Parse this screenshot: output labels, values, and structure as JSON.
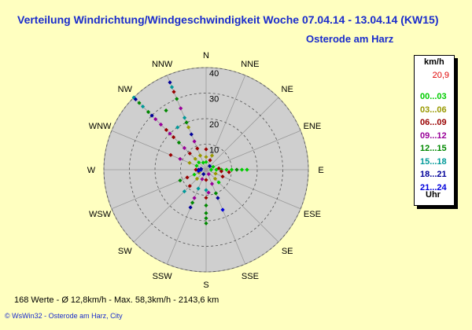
{
  "title": "Verteilung Windrichtung/Windgeschwindigkeit  Woche 07.04.14 - 13.04.14 (KW15)",
  "subtitle": "Osterode am Harz",
  "legend": {
    "unit": "km/h",
    "max": "20,9",
    "bands": [
      {
        "label": "00...03",
        "color": "#00cc00"
      },
      {
        "label": "03...06",
        "color": "#999900"
      },
      {
        "label": "06...09",
        "color": "#990000"
      },
      {
        "label": "09...12",
        "color": "#990099"
      },
      {
        "label": "12...15",
        "color": "#008800"
      },
      {
        "label": "15...18",
        "color": "#009999"
      },
      {
        "label": "18...21",
        "color": "#000099"
      },
      {
        "label": "21...24",
        "color": "#0000dd"
      }
    ],
    "footer": "Uhr"
  },
  "stats": "168 Werte   -   Ø 12,8km/h   -  Max. 58,3km/h   -   2143,6 km",
  "credit": "© WsWin32   -   Osterode am Harz, City",
  "chart_data": {
    "type": "scatter",
    "projection": "polar",
    "radial_max": 40,
    "radial_ticks": [
      10,
      20,
      30,
      40
    ],
    "direction_labels": [
      "N",
      "NNE",
      "NE",
      "ENE",
      "E",
      "ESE",
      "SE",
      "SSE",
      "S",
      "SSW",
      "SW",
      "WSW",
      "W",
      "WNW",
      "NW",
      "NNW"
    ],
    "points": [
      {
        "dir": 315,
        "r": 40,
        "c": 5
      },
      {
        "dir": 315,
        "r": 39,
        "c": 6
      },
      {
        "dir": 315,
        "r": 37,
        "c": 4
      },
      {
        "dir": 315,
        "r": 35,
        "c": 5
      },
      {
        "dir": 315,
        "r": 32,
        "c": 4
      },
      {
        "dir": 315,
        "r": 30,
        "c": 6
      },
      {
        "dir": 315,
        "r": 28,
        "c": 3
      },
      {
        "dir": 315,
        "r": 25,
        "c": 3
      },
      {
        "dir": 315,
        "r": 22,
        "c": 2
      },
      {
        "dir": 315,
        "r": 20,
        "c": 3
      },
      {
        "dir": 315,
        "r": 18,
        "c": 2
      },
      {
        "dir": 315,
        "r": 15,
        "c": 4
      },
      {
        "dir": 315,
        "r": 12,
        "c": 3
      },
      {
        "dir": 315,
        "r": 9,
        "c": 2
      },
      {
        "dir": 315,
        "r": 6,
        "c": 1
      },
      {
        "dir": 315,
        "r": 4,
        "c": 0
      },
      {
        "dir": 337.5,
        "r": 37,
        "c": 6
      },
      {
        "dir": 337.5,
        "r": 35,
        "c": 5
      },
      {
        "dir": 337.5,
        "r": 33,
        "c": 2
      },
      {
        "dir": 337.5,
        "r": 30,
        "c": 4
      },
      {
        "dir": 337.5,
        "r": 26,
        "c": 3
      },
      {
        "dir": 337.5,
        "r": 22,
        "c": 5
      },
      {
        "dir": 337.5,
        "r": 20,
        "c": 4
      },
      {
        "dir": 337.5,
        "r": 18,
        "c": 1
      },
      {
        "dir": 337.5,
        "r": 15,
        "c": 6
      },
      {
        "dir": 337.5,
        "r": 12,
        "c": 3
      },
      {
        "dir": 337.5,
        "r": 9,
        "c": 2
      },
      {
        "dir": 337.5,
        "r": 6,
        "c": 1
      },
      {
        "dir": 337.5,
        "r": 3,
        "c": 0
      },
      {
        "dir": 326,
        "r": 28,
        "c": 4
      },
      {
        "dir": 326,
        "r": 20,
        "c": 5
      },
      {
        "dir": 292.5,
        "r": 15,
        "c": 2
      },
      {
        "dir": 292.5,
        "r": 11,
        "c": 3
      },
      {
        "dir": 292.5,
        "r": 7,
        "c": 1
      },
      {
        "dir": 292.5,
        "r": 4,
        "c": 0
      },
      {
        "dir": 0,
        "r": 8,
        "c": 2
      },
      {
        "dir": 0,
        "r": 5,
        "c": 1
      },
      {
        "dir": 0,
        "r": 3,
        "c": 0
      },
      {
        "dir": 22.5,
        "r": 6,
        "c": 1
      },
      {
        "dir": 22.5,
        "r": 4,
        "c": 2
      },
      {
        "dir": 67.5,
        "r": 3,
        "c": 0
      },
      {
        "dir": 90,
        "r": 2,
        "c": 0
      },
      {
        "dir": 90,
        "r": 4,
        "c": 0
      },
      {
        "dir": 90,
        "r": 6,
        "c": 0
      },
      {
        "dir": 90,
        "r": 8,
        "c": 0
      },
      {
        "dir": 90,
        "r": 10,
        "c": 0
      },
      {
        "dir": 90,
        "r": 12,
        "c": 4
      },
      {
        "dir": 90,
        "r": 14,
        "c": 0
      },
      {
        "dir": 90,
        "r": 16,
        "c": 0
      },
      {
        "dir": 96,
        "r": 6,
        "c": 2
      },
      {
        "dir": 96,
        "r": 9,
        "c": 2
      },
      {
        "dir": 84,
        "r": 5,
        "c": 2
      },
      {
        "dir": 112.5,
        "r": 4,
        "c": 1
      },
      {
        "dir": 112.5,
        "r": 7,
        "c": 2
      },
      {
        "dir": 135,
        "r": 5,
        "c": 1
      },
      {
        "dir": 135,
        "r": 7,
        "c": 0
      },
      {
        "dir": 157.5,
        "r": 6,
        "c": 3
      },
      {
        "dir": 157.5,
        "r": 12,
        "c": 6
      },
      {
        "dir": 157.5,
        "r": 17,
        "c": 7
      },
      {
        "dir": 157.5,
        "r": 10,
        "c": 4
      },
      {
        "dir": 180,
        "r": 4,
        "c": 2
      },
      {
        "dir": 180,
        "r": 8,
        "c": 5
      },
      {
        "dir": 180,
        "r": 11,
        "c": 2
      },
      {
        "dir": 180,
        "r": 14,
        "c": 4
      },
      {
        "dir": 180,
        "r": 17,
        "c": 4
      },
      {
        "dir": 180,
        "r": 19,
        "c": 4
      },
      {
        "dir": 180,
        "r": 21,
        "c": 4
      },
      {
        "dir": 174,
        "r": 9,
        "c": 3
      },
      {
        "dir": 202.5,
        "r": 4,
        "c": 3
      },
      {
        "dir": 202.5,
        "r": 8,
        "c": 5
      },
      {
        "dir": 202.5,
        "r": 12,
        "c": 3
      },
      {
        "dir": 202.5,
        "r": 14,
        "c": 4
      },
      {
        "dir": 202.5,
        "r": 16,
        "c": 6
      },
      {
        "dir": 225,
        "r": 5,
        "c": 1
      },
      {
        "dir": 225,
        "r": 9,
        "c": 2
      },
      {
        "dir": 225,
        "r": 12,
        "c": 5
      },
      {
        "dir": 247.5,
        "r": 5,
        "c": 0
      },
      {
        "dir": 247.5,
        "r": 8,
        "c": 2
      },
      {
        "dir": 247.5,
        "r": 11,
        "c": 4
      },
      {
        "dir": 247.5,
        "r": 3,
        "c": 1
      },
      {
        "dir": 270,
        "r": 2,
        "c": 7
      },
      {
        "dir": 270,
        "r": 3,
        "c": 6
      },
      {
        "dir": 270,
        "r": 4,
        "c": 2
      },
      {
        "dir": 280,
        "r": 2,
        "c": 6
      },
      {
        "dir": 260,
        "r": 3,
        "c": 7
      },
      {
        "dir": 45,
        "r": 2,
        "c": 6
      },
      {
        "dir": 150,
        "r": 2,
        "c": 3
      },
      {
        "dir": 210,
        "r": 2,
        "c": 6
      }
    ]
  }
}
